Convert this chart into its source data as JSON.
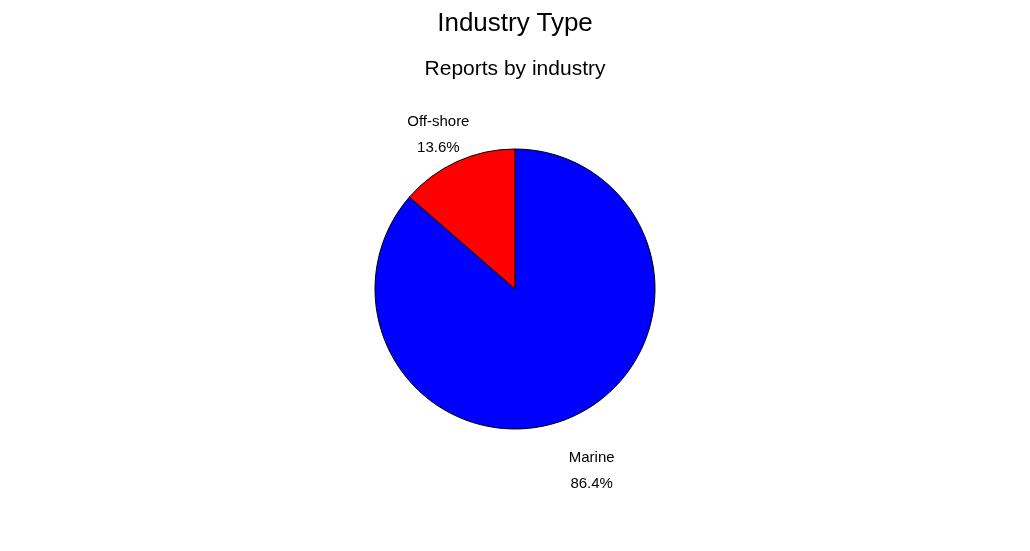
{
  "chart_data": {
    "type": "pie",
    "title": "Industry Type",
    "subtitle": "Reports by industry",
    "categories": [
      "Marine",
      "Off-shore"
    ],
    "values": [
      86.4,
      13.6
    ],
    "colors": [
      "#0000ff",
      "#ff0000"
    ],
    "value_labels": [
      "86.4%",
      "13.6%"
    ]
  }
}
